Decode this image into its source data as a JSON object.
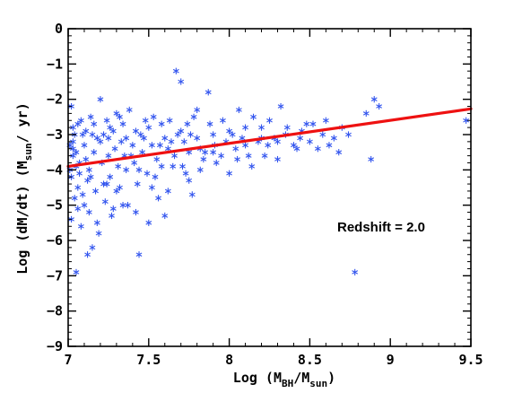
{
  "chart_data": {
    "type": "scatter",
    "title": "",
    "xlabel": {
      "main": "Log (M",
      "sub1": "BH",
      "mid": "/M",
      "sub2": "sun",
      "end": ")"
    },
    "ylabel": {
      "main": "Log (dM/dt)  (M",
      "sub": "sun",
      "end": "/ yr)"
    },
    "xlim": [
      7,
      9.5
    ],
    "ylim": [
      -9,
      0
    ],
    "xticks": [
      "7",
      "7.5",
      "8",
      "8.5",
      "9",
      "9.5"
    ],
    "yticks": [
      "0",
      "−1",
      "−2",
      "−3",
      "−4",
      "−5",
      "−6",
      "−7",
      "−8",
      "−9"
    ],
    "xtick_values": [
      7,
      7.5,
      8,
      8.5,
      9,
      9.5
    ],
    "ytick_values": [
      0,
      -1,
      -2,
      -3,
      -4,
      -5,
      -6,
      -7,
      -8,
      -9
    ],
    "grid": false,
    "annotation": "Redshift = 2.0",
    "marker_color": "#3355ee",
    "fit_color": "#ee1111",
    "fit_line": {
      "x": [
        7,
        9.5
      ],
      "y": [
        -3.9,
        -2.27
      ]
    },
    "points": [
      [
        7.02,
        -2.2
      ],
      [
        7.04,
        -3.0
      ],
      [
        7.01,
        -3.3
      ],
      [
        7.03,
        -3.6
      ],
      [
        7.05,
        -3.9
      ],
      [
        7.02,
        -4.2
      ],
      [
        7.06,
        -4.5
      ],
      [
        7.01,
        -4.0
      ],
      [
        7.03,
        -3.2
      ],
      [
        7.04,
        -4.8
      ],
      [
        7.06,
        -5.1
      ],
      [
        7.02,
        -5.4
      ],
      [
        7.05,
        -3.5
      ],
      [
        7.07,
        -4.1
      ],
      [
        7.08,
        -2.6
      ],
      [
        7.09,
        -3.0
      ],
      [
        7.03,
        -2.8
      ],
      [
        7.05,
        -6.9
      ],
      [
        7.1,
        -3.3
      ],
      [
        7.11,
        -3.7
      ],
      [
        7.12,
        -4.3
      ],
      [
        7.1,
        -5.0
      ],
      [
        7.13,
        -5.2
      ],
      [
        7.14,
        -2.5
      ],
      [
        7.15,
        -3.0
      ],
      [
        7.16,
        -3.5
      ],
      [
        7.13,
        -4.0
      ],
      [
        7.17,
        -4.6
      ],
      [
        7.18,
        -5.5
      ],
      [
        7.19,
        -5.8
      ],
      [
        7.15,
        -6.2
      ],
      [
        7.12,
        -6.4
      ],
      [
        7.2,
        -2.0
      ],
      [
        7.2,
        -3.2
      ],
      [
        7.21,
        -3.8
      ],
      [
        7.22,
        -4.4
      ],
      [
        7.23,
        -4.9
      ],
      [
        7.24,
        -2.6
      ],
      [
        7.25,
        -3.1
      ],
      [
        7.25,
        -3.6
      ],
      [
        7.26,
        -4.2
      ],
      [
        7.27,
        -5.3
      ],
      [
        7.28,
        -2.9
      ],
      [
        7.29,
        -3.4
      ],
      [
        7.3,
        -2.4
      ],
      [
        7.31,
        -3.9
      ],
      [
        7.32,
        -4.5
      ],
      [
        7.33,
        -3.2
      ],
      [
        7.34,
        -2.7
      ],
      [
        7.35,
        -3.6
      ],
      [
        7.36,
        -4.0
      ],
      [
        7.37,
        -5.0
      ],
      [
        7.38,
        -2.3
      ],
      [
        7.4,
        -3.3
      ],
      [
        7.41,
        -3.8
      ],
      [
        7.42,
        -2.9
      ],
      [
        7.43,
        -4.4
      ],
      [
        7.44,
        -6.4
      ],
      [
        7.45,
        -3.0
      ],
      [
        7.46,
        -3.5
      ],
      [
        7.48,
        -2.6
      ],
      [
        7.49,
        -4.1
      ],
      [
        7.5,
        -2.8
      ],
      [
        7.5,
        -5.5
      ],
      [
        7.52,
        -3.3
      ],
      [
        7.53,
        -2.5
      ],
      [
        7.55,
        -3.7
      ],
      [
        7.56,
        -4.8
      ],
      [
        7.58,
        -2.7
      ],
      [
        7.6,
        -3.1
      ],
      [
        7.6,
        -5.3
      ],
      [
        7.62,
        -3.4
      ],
      [
        7.63,
        -2.6
      ],
      [
        7.65,
        -3.9
      ],
      [
        7.67,
        -1.2
      ],
      [
        7.68,
        -3.0
      ],
      [
        7.7,
        -1.5
      ],
      [
        7.7,
        -2.9
      ],
      [
        7.72,
        -3.2
      ],
      [
        7.73,
        -4.1
      ],
      [
        7.75,
        -3.5
      ],
      [
        7.75,
        -4.3
      ],
      [
        7.77,
        -4.7
      ],
      [
        7.78,
        -2.5
      ],
      [
        7.8,
        -3.1
      ],
      [
        7.82,
        -3.4
      ],
      [
        7.85,
        -3.5
      ],
      [
        7.87,
        -1.8
      ],
      [
        7.88,
        -2.7
      ],
      [
        7.9,
        -3.0
      ],
      [
        7.92,
        -3.8
      ],
      [
        7.95,
        -3.6
      ],
      [
        7.98,
        -3.2
      ],
      [
        8.0,
        -2.9
      ],
      [
        8.0,
        -4.1
      ],
      [
        8.02,
        -3.0
      ],
      [
        8.05,
        -3.7
      ],
      [
        8.06,
        -2.3
      ],
      [
        8.1,
        -2.8
      ],
      [
        8.12,
        -3.6
      ],
      [
        8.15,
        -2.5
      ],
      [
        8.18,
        -3.2
      ],
      [
        8.2,
        -3.1
      ],
      [
        8.22,
        -3.6
      ],
      [
        8.25,
        -2.6
      ],
      [
        8.28,
        -3.1
      ],
      [
        8.3,
        -3.7
      ],
      [
        8.32,
        -2.2
      ],
      [
        8.35,
        -3.0
      ],
      [
        8.4,
        -3.3
      ],
      [
        8.45,
        -2.9
      ],
      [
        8.48,
        -2.7
      ],
      [
        8.5,
        -3.2
      ],
      [
        8.55,
        -3.4
      ],
      [
        8.6,
        -2.6
      ],
      [
        8.65,
        -3.1
      ],
      [
        8.7,
        -2.8
      ],
      [
        8.78,
        -6.9
      ],
      [
        8.85,
        -2.4
      ],
      [
        8.88,
        -3.7
      ],
      [
        8.9,
        -2.0
      ],
      [
        8.93,
        -2.2
      ],
      [
        9.47,
        -2.6
      ],
      [
        7.03,
        -3.4
      ],
      [
        7.07,
        -3.8
      ],
      [
        7.09,
        -4.7
      ],
      [
        7.11,
        -2.9
      ],
      [
        7.14,
        -4.2
      ],
      [
        7.18,
        -3.1
      ],
      [
        7.22,
        -3.0
      ],
      [
        7.26,
        -2.8
      ],
      [
        7.3,
        -4.6
      ],
      [
        7.34,
        -5.0
      ],
      [
        7.39,
        -3.6
      ],
      [
        7.44,
        -4.0
      ],
      [
        7.47,
        -3.1
      ],
      [
        7.54,
        -4.2
      ],
      [
        7.57,
        -3.3
      ],
      [
        7.62,
        -4.6
      ],
      [
        7.66,
        -3.6
      ],
      [
        7.71,
        -3.9
      ],
      [
        7.76,
        -3.0
      ],
      [
        7.8,
        -2.3
      ],
      [
        7.84,
        -3.7
      ],
      [
        7.91,
        -3.3
      ],
      [
        7.96,
        -2.6
      ],
      [
        8.04,
        -3.4
      ],
      [
        8.08,
        -3.1
      ],
      [
        8.14,
        -3.9
      ],
      [
        8.24,
        -3.3
      ],
      [
        8.36,
        -2.8
      ],
      [
        8.42,
        -3.4
      ],
      [
        8.52,
        -2.7
      ],
      [
        8.62,
        -3.3
      ],
      [
        8.74,
        -3.0
      ],
      [
        7.06,
        -2.7
      ],
      [
        7.08,
        -5.6
      ],
      [
        7.16,
        -2.7
      ],
      [
        7.24,
        -4.4
      ],
      [
        7.28,
        -5.1
      ],
      [
        7.32,
        -2.5
      ],
      [
        7.36,
        -3.1
      ],
      [
        7.42,
        -5.2
      ],
      [
        7.52,
        -4.5
      ],
      [
        7.58,
        -3.9
      ],
      [
        7.64,
        -3.2
      ],
      [
        7.74,
        -2.7
      ],
      [
        7.82,
        -4.0
      ],
      [
        7.9,
        -3.5
      ],
      [
        8.1,
        -3.3
      ],
      [
        8.2,
        -2.8
      ],
      [
        8.3,
        -3.2
      ],
      [
        8.44,
        -3.1
      ],
      [
        8.58,
        -3.0
      ],
      [
        8.68,
        -3.5
      ]
    ]
  }
}
